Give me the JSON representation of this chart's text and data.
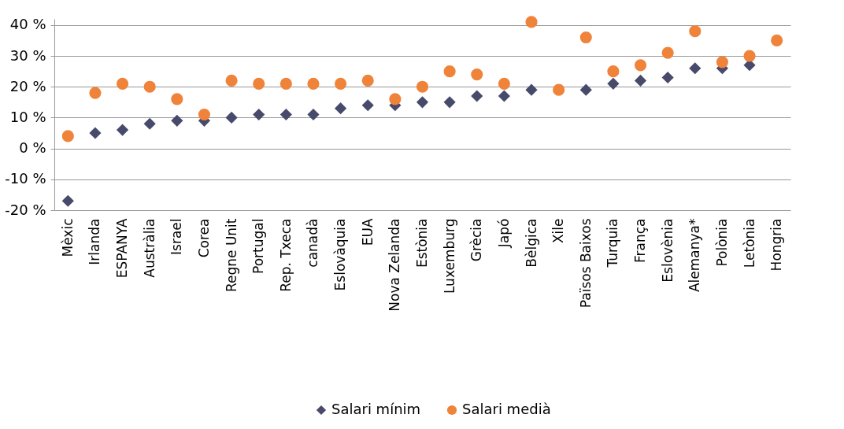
{
  "chart_data": {
    "type": "scatter",
    "categories": [
      "Mèxic",
      "Irlanda",
      "ESPANYA",
      "Austràlia",
      "Israel",
      "Corea",
      "Regne Unit",
      "Portugal",
      "Rep. Txeca",
      "canadà",
      "Eslovàquia",
      "EUA",
      "Nova Zelanda",
      "Estònia",
      "Luxemburg",
      "Grècia",
      "Japó",
      "Bèlgica",
      "Xile",
      "Països Baixos",
      "Turquia",
      "França",
      "Eslovènia",
      "Alemanya*",
      "Polònia",
      "Letònia",
      "Hongria"
    ],
    "series": [
      {
        "name": "Salari mínim",
        "color": "#474a6b",
        "marker": "diamond",
        "values": [
          -17,
          5,
          6,
          8,
          9,
          9,
          10,
          11,
          11,
          11,
          13,
          14,
          14,
          15,
          15,
          17,
          17,
          19,
          null,
          19,
          21,
          22,
          23,
          26,
          26,
          27,
          null
        ]
      },
      {
        "name": "Salari medià",
        "color": "#f0833a",
        "marker": "circle",
        "values": [
          4,
          18,
          21,
          20,
          16,
          11,
          22,
          21,
          21,
          21,
          21,
          22,
          16,
          20,
          25,
          24,
          21,
          41,
          19,
          36,
          25,
          27,
          31,
          38,
          28,
          30,
          35
        ]
      }
    ],
    "ylim": [
      -20,
      42
    ],
    "yticks": [
      {
        "value": -20,
        "label": "-20 %"
      },
      {
        "value": -10,
        "label": "-10 %"
      },
      {
        "value": 0,
        "label": "0 %"
      },
      {
        "value": 10,
        "label": "10 %"
      },
      {
        "value": 20,
        "label": "20 %"
      },
      {
        "value": 30,
        "label": "30 %"
      },
      {
        "value": 40,
        "label": "40 %"
      }
    ],
    "grid": "y",
    "legend": "bottom"
  }
}
